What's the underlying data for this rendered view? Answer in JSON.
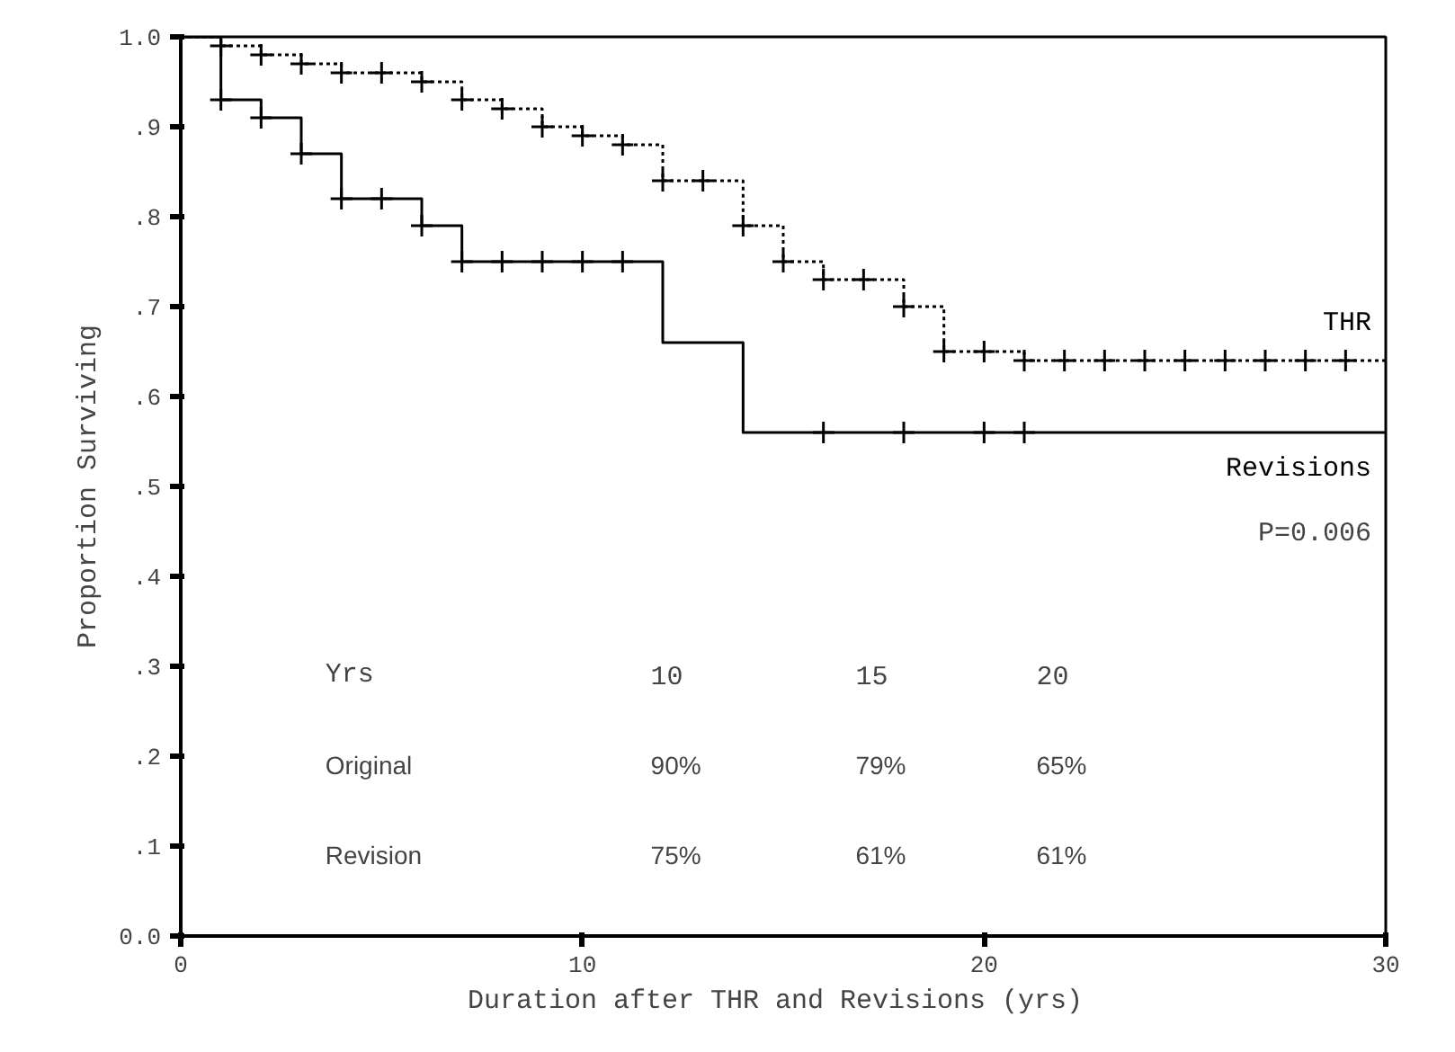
{
  "chart_data": {
    "type": "step",
    "xlabel": "Duration after THR  and Revisions (yrs)",
    "ylabel": "Proportion Surviving",
    "xlim": [
      0,
      30
    ],
    "xticks": [
      0,
      10,
      20,
      30
    ],
    "ylim": [
      0,
      1
    ],
    "yticks": [
      {
        "value": 0,
        "label": "0.0"
      },
      {
        "value": 0.1,
        "label": ".1"
      },
      {
        "value": 0.2,
        "label": ".2"
      },
      {
        "value": 0.3,
        "label": ".3"
      },
      {
        "value": 0.4,
        "label": ".4"
      },
      {
        "value": 0.5,
        "label": ".5"
      },
      {
        "value": 0.6,
        "label": ".6"
      },
      {
        "value": 0.7,
        "label": ".7"
      },
      {
        "value": 0.8,
        "label": ".8"
      },
      {
        "value": 0.9,
        "label": ".9"
      },
      {
        "value": 1,
        "label": "1.0"
      }
    ],
    "grid": false,
    "series": [
      {
        "name": "THR",
        "color": "#000000",
        "line_style": "dotted",
        "x": [
          0,
          1,
          2,
          3,
          4,
          6,
          7,
          8,
          9,
          10,
          11,
          12,
          14,
          15,
          16,
          18,
          19,
          21,
          30
        ],
        "values": [
          1.0,
          0.99,
          0.98,
          0.97,
          0.96,
          0.95,
          0.93,
          0.92,
          0.9,
          0.89,
          0.88,
          0.84,
          0.79,
          0.75,
          0.73,
          0.7,
          0.65,
          0.64,
          0.64
        ]
      },
      {
        "name": "Revisions",
        "color": "#000000",
        "line_style": "solid",
        "x": [
          0,
          1,
          2,
          3,
          4,
          6,
          7,
          12,
          14,
          30
        ],
        "values": [
          1.0,
          0.93,
          0.91,
          0.87,
          0.82,
          0.79,
          0.75,
          0.66,
          0.56,
          0.56
        ]
      },
      {
        "type": "scatter",
        "marker": "cross",
        "color": "#000000",
        "x": [
          1,
          2,
          3,
          4,
          5,
          6,
          7,
          8,
          9,
          10,
          11,
          12,
          13,
          14,
          15,
          16,
          17,
          18,
          19,
          20,
          21,
          22,
          23,
          24,
          25,
          26,
          27,
          28,
          29
        ],
        "values": [
          0.99,
          0.98,
          0.97,
          0.96,
          0.96,
          0.95,
          0.93,
          0.92,
          0.9,
          0.89,
          0.88,
          0.84,
          0.84,
          0.79,
          0.75,
          0.73,
          0.73,
          0.7,
          0.65,
          0.65,
          0.64,
          0.64,
          0.64,
          0.64,
          0.64,
          0.64,
          0.64,
          0.64,
          0.64
        ]
      },
      {
        "type": "scatter",
        "marker": "cross",
        "color": "#000000",
        "x": [
          1,
          2,
          3,
          4,
          5,
          6,
          7,
          8,
          9,
          10,
          11,
          16,
          18,
          20,
          21
        ],
        "values": [
          0.93,
          0.91,
          0.87,
          0.82,
          0.82,
          0.79,
          0.75,
          0.75,
          0.75,
          0.75,
          0.75,
          0.56,
          0.56,
          0.56,
          0.56
        ]
      }
    ],
    "annotations": [
      "P=0.006",
      "Yrs",
      "10",
      "15",
      "20",
      "Original",
      "90%",
      "79%",
      "65%",
      "Revision",
      "75%",
      "61%",
      "61%"
    ]
  }
}
